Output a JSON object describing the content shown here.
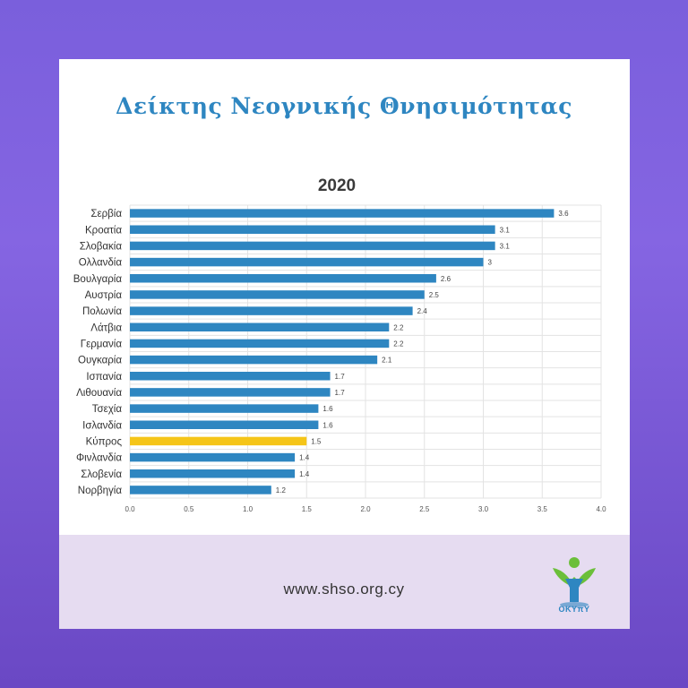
{
  "title": "Δείκτης Νεογνικής Θνησιμότητας",
  "website": "www.shso.org.cy",
  "logo_text": "OKYπY",
  "colors": {
    "bar": "#2e86c1",
    "highlight": "#f5c518",
    "title": "#2e86c1",
    "card": "#ffffff",
    "footer": "#e6dcf1"
  },
  "chart_data": {
    "type": "bar",
    "orientation": "horizontal",
    "title": "2020",
    "xlabel": "",
    "ylabel": "",
    "xlim": [
      0,
      4
    ],
    "xticks": [
      "0.0",
      "0.5",
      "1.0",
      "1.5",
      "2.0",
      "2.5",
      "3.0",
      "3.5",
      "4.0"
    ],
    "grid": true,
    "highlight_category": "Κύπρος",
    "categories": [
      "Σερβία",
      "Κροατία",
      "Σλοβακία",
      "Ολλανδία",
      "Βουλγαρία",
      "Αυστρία",
      "Πολωνία",
      "Λάτβια",
      "Γερμανία",
      "Ουγκαρία",
      "Ισπανία",
      "Λιθουανία",
      "Τσεχία",
      "Ισλανδία",
      "Κύπρος",
      "Φινλανδία",
      "Σλοβενία",
      "Νορβηγία"
    ],
    "values": [
      3.6,
      3.1,
      3.1,
      3,
      2.6,
      2.5,
      2.4,
      2.2,
      2.2,
      2.1,
      1.7,
      1.7,
      1.6,
      1.6,
      1.5,
      1.4,
      1.4,
      1.2
    ],
    "value_labels": [
      "3.6",
      "3.1",
      "3.1",
      "3",
      "2.6",
      "2.5",
      "2.4",
      "2.2",
      "2.2",
      "2.1",
      "1.7",
      "1.7",
      "1.6",
      "1.6",
      "1.5",
      "1.4",
      "1.4",
      "1.2"
    ]
  }
}
